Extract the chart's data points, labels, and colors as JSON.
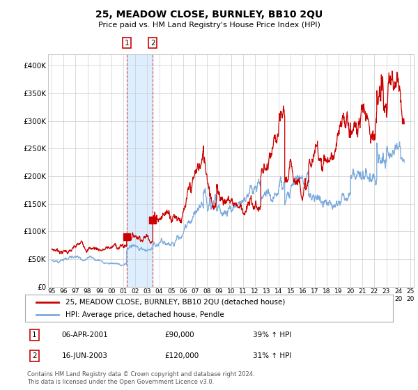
{
  "title": "25, MEADOW CLOSE, BURNLEY, BB10 2QU",
  "subtitle": "Price paid vs. HM Land Registry's House Price Index (HPI)",
  "legend_line1": "25, MEADOW CLOSE, BURNLEY, BB10 2QU (detached house)",
  "legend_line2": "HPI: Average price, detached house, Pendle",
  "transaction1_date": "06-APR-2001",
  "transaction1_price": "£90,000",
  "transaction1_hpi": "39% ↑ HPI",
  "transaction2_date": "16-JUN-2003",
  "transaction2_price": "£120,000",
  "transaction2_hpi": "31% ↑ HPI",
  "footer": "Contains HM Land Registry data © Crown copyright and database right 2024.\nThis data is licensed under the Open Government Licence v3.0.",
  "red_color": "#cc0000",
  "blue_color": "#7aaadd",
  "highlight_fill": "#ddeeff",
  "highlight_line": "#cc0000",
  "transaction1_x": 2001.27,
  "transaction1_y": 90000,
  "transaction2_x": 2003.46,
  "transaction2_y": 120000,
  "ylim": [
    0,
    420000
  ],
  "xlim": [
    1994.7,
    2025.3
  ],
  "yticks": [
    0,
    50000,
    100000,
    150000,
    200000,
    250000,
    300000,
    350000,
    400000
  ],
  "ytick_labels": [
    "£0",
    "£50K",
    "£100K",
    "£150K",
    "£200K",
    "£250K",
    "£300K",
    "£350K",
    "£400K"
  ],
  "xticks": [
    1995,
    1996,
    1997,
    1998,
    1999,
    2000,
    2001,
    2002,
    2003,
    2004,
    2005,
    2006,
    2007,
    2008,
    2009,
    2010,
    2011,
    2012,
    2013,
    2014,
    2015,
    2016,
    2017,
    2018,
    2019,
    2020,
    2021,
    2022,
    2023,
    2024,
    2025
  ]
}
